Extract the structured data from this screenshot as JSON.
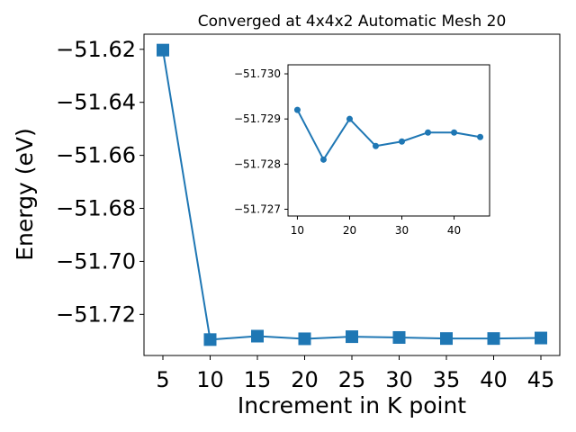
{
  "chart_data": [
    {
      "type": "line",
      "title": "Converged at 4x4x2 Automatic Mesh 20",
      "xlabel": "Increment in K point",
      "ylabel": "Energy (eV)",
      "x": [
        5,
        10,
        15,
        20,
        25,
        30,
        35,
        40,
        45
      ],
      "series": [
        {
          "values": [
            -51.6203,
            -51.7295,
            -51.7282,
            -51.7292,
            -51.7284,
            -51.7287,
            -51.7291,
            -51.7291,
            -51.7289
          ],
          "color": "#1f77b4",
          "marker": "square"
        }
      ],
      "xlim": [
        3.0,
        47.0
      ],
      "ylim": [
        -51.7355,
        -51.6143
      ],
      "xticks": [
        5,
        10,
        15,
        20,
        25,
        30,
        35,
        40,
        45
      ],
      "yticks": [
        -51.62,
        -51.64,
        -51.66,
        -51.68,
        -51.7,
        -51.72
      ],
      "xtick_labels": [
        "5",
        "10",
        "15",
        "20",
        "25",
        "30",
        "35",
        "40",
        "45"
      ],
      "ytick_labels": [
        "−51.62",
        "−51.64",
        "−51.66",
        "−51.68",
        "−51.70",
        "−51.72"
      ],
      "grid": false,
      "legend": "none"
    },
    {
      "type": "line",
      "title": "",
      "xlabel": "",
      "ylabel": "",
      "x": [
        10,
        15,
        20,
        25,
        30,
        35,
        40,
        45
      ],
      "series": [
        {
          "values": [
            -51.7292,
            -51.7281,
            -51.729,
            -51.7284,
            -51.7285,
            -51.7287,
            -51.7287,
            -51.7286
          ],
          "color": "#1f77b4",
          "marker": "circle"
        }
      ],
      "xlim": [
        8.2,
        46.8
      ],
      "ylim": [
        -51.7302,
        -51.72685
      ],
      "y_axis_inverted": true,
      "xticks": [
        10,
        20,
        30,
        40
      ],
      "yticks": [
        -51.73,
        -51.729,
        -51.728,
        -51.727
      ],
      "xtick_labels": [
        "10",
        "20",
        "30",
        "40"
      ],
      "ytick_labels": [
        "−51.730",
        "−51.729",
        "−51.728",
        "−51.727"
      ],
      "grid": false,
      "legend": "none"
    }
  ]
}
